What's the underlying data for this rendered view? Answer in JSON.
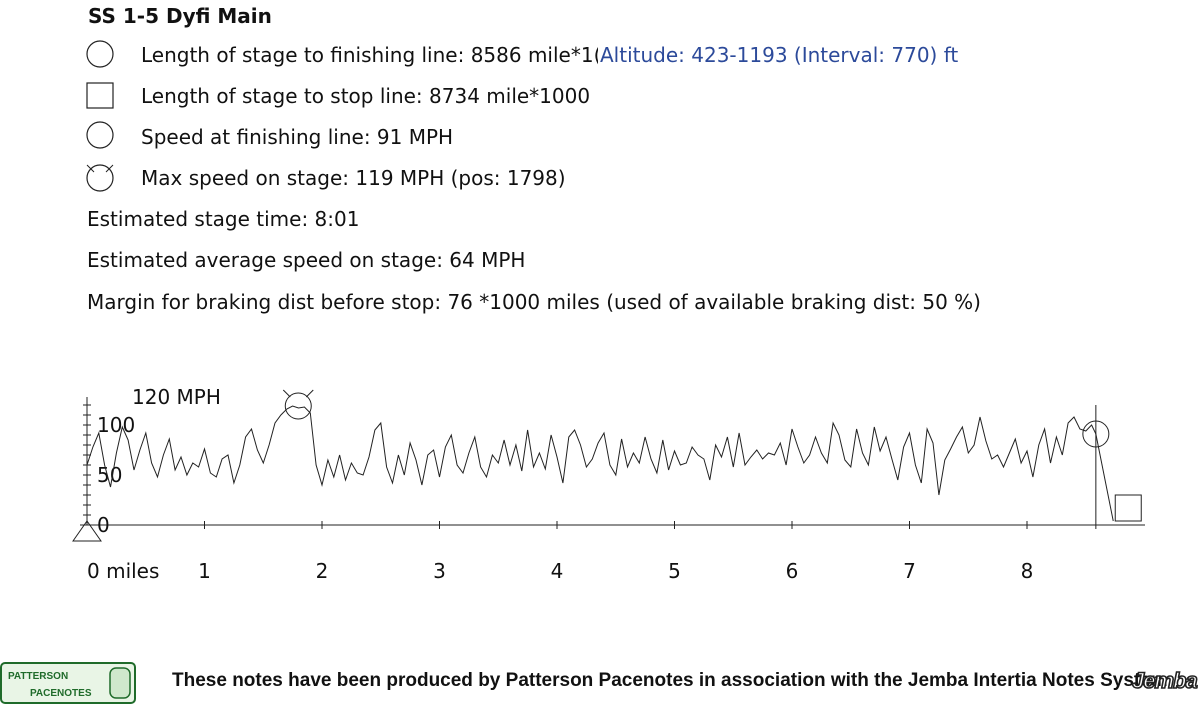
{
  "title": "SS 1-5 Dyfi Main",
  "legend": [
    {
      "icon": "circle-icon",
      "text": "Length of stage to finishing line: 8586 mile*1("
    },
    {
      "icon": "square-icon",
      "text": "Length of stage to stop line: 8734 mile*1000"
    },
    {
      "icon": "circle-icon",
      "text": "Speed at finishing line: 91 MPH"
    },
    {
      "icon": "circle-cross-icon",
      "text": "Max speed on stage: 119 MPH (pos: 1798)"
    }
  ],
  "stats": [
    "Estimated stage time: 8:01",
    "Estimated average speed on stage: 64 MPH",
    "Margin for braking dist before stop: 76 *1000 miles (used of available braking dist: 50 %)"
  ],
  "altitude": "Altitude: 423-1193 (Interval: 770) ft",
  "footer": {
    "text": "These notes have been produced by Patterson Pacenotes in association with the Jemba Intertia Notes System",
    "logo_left_top": "PATTERSON",
    "logo_left_bottom": "PACENOTES",
    "logo_right": "Jemba"
  },
  "chart_data": {
    "type": "line",
    "title": "",
    "ylabel_top": "120 MPH",
    "xlabel": "",
    "x_tick_labels": [
      "0 miles",
      "1",
      "2",
      "3",
      "4",
      "5",
      "6",
      "7",
      "8"
    ],
    "y_tick_labels": [
      "0",
      "50",
      "100"
    ],
    "xlim": [
      0,
      9
    ],
    "ylim": [
      0,
      120
    ],
    "finish_x": 8.586,
    "stop_x": 8.734,
    "finish_speed": 91,
    "max_speed": 119,
    "max_speed_x": 1.798,
    "series": [
      {
        "x": [
          0.0,
          0.05,
          0.1,
          0.15,
          0.2,
          0.25,
          0.3,
          0.35,
          0.4,
          0.45,
          0.5,
          0.55,
          0.6,
          0.65,
          0.7,
          0.75,
          0.8,
          0.85,
          0.9,
          0.95,
          1.0,
          1.05,
          1.1,
          1.15,
          1.2,
          1.25,
          1.3,
          1.35,
          1.4,
          1.45,
          1.5,
          1.55,
          1.6,
          1.65,
          1.7,
          1.75,
          1.8,
          1.85,
          1.9,
          1.95,
          2.0,
          2.05,
          2.1,
          2.15,
          2.2,
          2.25,
          2.3,
          2.35,
          2.4,
          2.45,
          2.5,
          2.55,
          2.6,
          2.65,
          2.7,
          2.75,
          2.8,
          2.85,
          2.9,
          2.95,
          3.0,
          3.05,
          3.1,
          3.15,
          3.2,
          3.25,
          3.3,
          3.35,
          3.4,
          3.45,
          3.5,
          3.55,
          3.6,
          3.65,
          3.7,
          3.75,
          3.8,
          3.85,
          3.9,
          3.95,
          4.0,
          4.05,
          4.1,
          4.15,
          4.2,
          4.25,
          4.3,
          4.35,
          4.4,
          4.45,
          4.5,
          4.55,
          4.6,
          4.65,
          4.7,
          4.75,
          4.8,
          4.85,
          4.9,
          4.95,
          5.0,
          5.05,
          5.1,
          5.15,
          5.2,
          5.25,
          5.3,
          5.35,
          5.4,
          5.45,
          5.5,
          5.55,
          5.6,
          5.65,
          5.7,
          5.75,
          5.8,
          5.85,
          5.9,
          5.95,
          6.0,
          6.05,
          6.1,
          6.15,
          6.2,
          6.25,
          6.3,
          6.35,
          6.4,
          6.45,
          6.5,
          6.55,
          6.6,
          6.65,
          6.7,
          6.75,
          6.8,
          6.85,
          6.9,
          6.95,
          7.0,
          7.05,
          7.1,
          7.15,
          7.2,
          7.25,
          7.3,
          7.35,
          7.4,
          7.45,
          7.5,
          7.55,
          7.6,
          7.65,
          7.7,
          7.75,
          7.8,
          7.85,
          7.9,
          7.95,
          8.0,
          8.05,
          8.1,
          8.15,
          8.2,
          8.25,
          8.3,
          8.35,
          8.4,
          8.45,
          8.5,
          8.55,
          8.586
        ],
        "values": [
          60,
          78,
          92,
          60,
          38,
          72,
          98,
          85,
          55,
          75,
          92,
          62,
          48,
          70,
          86,
          55,
          68,
          50,
          62,
          58,
          76,
          52,
          48,
          66,
          70,
          42,
          60,
          88,
          96,
          75,
          62,
          80,
          102,
          110,
          116,
          119,
          117,
          118,
          112,
          60,
          40,
          65,
          48,
          70,
          45,
          62,
          52,
          50,
          68,
          95,
          102,
          58,
          42,
          70,
          50,
          82,
          65,
          40,
          70,
          75,
          48,
          78,
          90,
          60,
          52,
          72,
          88,
          58,
          48,
          70,
          62,
          85,
          60,
          80,
          54,
          95,
          58,
          72,
          56,
          90,
          68,
          42,
          88,
          95,
          80,
          58,
          66,
          82,
          92,
          60,
          50,
          86,
          58,
          72,
          62,
          88,
          66,
          52,
          85,
          55,
          74,
          60,
          62,
          78,
          70,
          66,
          45,
          80,
          68,
          88,
          58,
          92,
          60,
          68,
          75,
          66,
          72,
          70,
          82,
          60,
          96,
          78,
          62,
          70,
          88,
          72,
          62,
          102,
          90,
          65,
          58,
          96,
          72,
          60,
          98,
          74,
          88,
          66,
          45,
          78,
          92,
          60,
          42,
          96,
          82,
          30,
          65,
          76,
          88,
          98,
          72,
          80,
          108,
          84,
          66,
          70,
          58,
          72,
          86,
          62,
          74,
          48,
          80,
          96,
          62,
          88,
          70,
          102,
          108,
          96,
          94,
          100,
          91
        ]
      }
    ]
  }
}
